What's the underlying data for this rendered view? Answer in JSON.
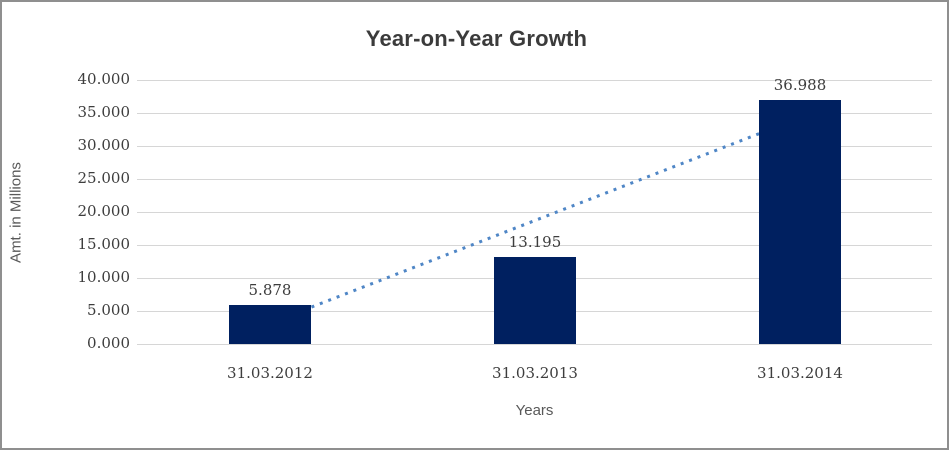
{
  "chart_data": {
    "type": "bar",
    "title": "Year-on-Year Growth",
    "xlabel": "Years",
    "ylabel": "Amt. in Millions",
    "categories": [
      "31.03.2012",
      "31.03.2013",
      "31.03.2014"
    ],
    "values": [
      5.878,
      13.195,
      36.988
    ],
    "data_labels": [
      "5.878",
      "13.195",
      "36.988"
    ],
    "ylim": [
      0,
      40
    ],
    "ytick_step": 5,
    "ytick_labels": [
      "0.000",
      "5.000",
      "10.000",
      "15.000",
      "20.000",
      "25.000",
      "30.000",
      "35.000",
      "40.000"
    ],
    "grid": true,
    "legend": "none",
    "bar_color": "#002060",
    "gridline_color": "#d6d6d6",
    "title_color": "#3b3b3b",
    "axis_title_color": "#595959",
    "tick_label_color": "#3d3d3d",
    "trendline": {
      "type": "linear",
      "style": "dotted",
      "color": "#4f86c6"
    }
  }
}
